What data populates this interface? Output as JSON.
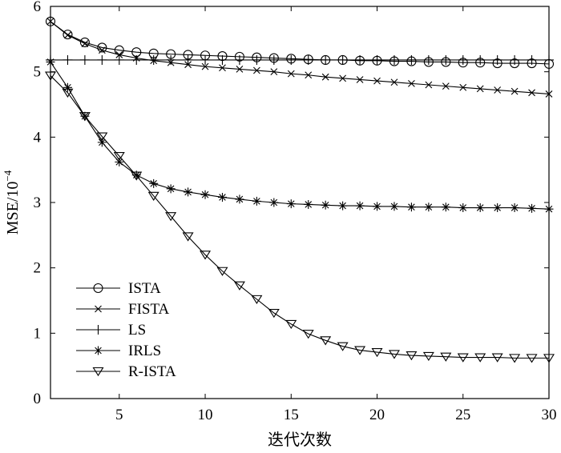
{
  "chart_data": {
    "type": "line",
    "title": "",
    "xlabel": "迭代次数",
    "ylabel": "MSE/10",
    "ylabel_exponent": "−4",
    "xlim": [
      1,
      30
    ],
    "ylim": [
      0,
      6
    ],
    "xticks": [
      5,
      10,
      15,
      20,
      25,
      30
    ],
    "yticks": [
      0,
      1,
      2,
      3,
      4,
      5,
      6
    ],
    "grid": false,
    "legend_position": "bottom-left",
    "line_color": "#000000",
    "series": [
      {
        "name": "ISTA",
        "marker": "circle",
        "x": [
          1,
          2,
          3,
          4,
          5,
          6,
          7,
          8,
          9,
          10,
          11,
          12,
          13,
          14,
          15,
          16,
          17,
          18,
          19,
          20,
          21,
          22,
          23,
          24,
          25,
          26,
          27,
          28,
          29,
          30
        ],
        "values": [
          5.77,
          5.57,
          5.45,
          5.37,
          5.33,
          5.3,
          5.28,
          5.27,
          5.26,
          5.25,
          5.24,
          5.23,
          5.22,
          5.21,
          5.2,
          5.19,
          5.18,
          5.18,
          5.17,
          5.17,
          5.16,
          5.16,
          5.15,
          5.15,
          5.14,
          5.14,
          5.13,
          5.13,
          5.13,
          5.12
        ]
      },
      {
        "name": "FISTA",
        "marker": "x",
        "x": [
          1,
          2,
          3,
          4,
          5,
          6,
          7,
          8,
          9,
          10,
          11,
          12,
          13,
          14,
          15,
          16,
          17,
          18,
          19,
          20,
          21,
          22,
          23,
          24,
          25,
          26,
          27,
          28,
          29,
          30
        ],
        "values": [
          5.77,
          5.56,
          5.43,
          5.33,
          5.26,
          5.21,
          5.17,
          5.14,
          5.11,
          5.08,
          5.06,
          5.04,
          5.02,
          5.0,
          4.97,
          4.95,
          4.92,
          4.9,
          4.88,
          4.86,
          4.84,
          4.82,
          4.8,
          4.78,
          4.76,
          4.74,
          4.72,
          4.7,
          4.68,
          4.66
        ]
      },
      {
        "name": "LS",
        "marker": "plus",
        "x": [
          1,
          2,
          3,
          4,
          5,
          6,
          7,
          8,
          9,
          10,
          11,
          12,
          13,
          14,
          15,
          16,
          17,
          18,
          19,
          20,
          21,
          22,
          23,
          24,
          25,
          26,
          27,
          28,
          29,
          30
        ],
        "values": [
          5.18,
          5.18,
          5.18,
          5.18,
          5.18,
          5.18,
          5.18,
          5.18,
          5.18,
          5.18,
          5.18,
          5.18,
          5.18,
          5.18,
          5.18,
          5.18,
          5.18,
          5.18,
          5.18,
          5.18,
          5.18,
          5.18,
          5.18,
          5.18,
          5.18,
          5.18,
          5.18,
          5.18,
          5.18,
          5.18
        ]
      },
      {
        "name": "IRLS",
        "marker": "asterisk",
        "x": [
          1,
          2,
          3,
          4,
          5,
          6,
          7,
          8,
          9,
          10,
          11,
          12,
          13,
          14,
          15,
          16,
          17,
          18,
          19,
          20,
          21,
          22,
          23,
          24,
          25,
          26,
          27,
          28,
          29,
          30
        ],
        "values": [
          5.15,
          4.76,
          4.32,
          3.92,
          3.62,
          3.42,
          3.29,
          3.21,
          3.16,
          3.12,
          3.08,
          3.05,
          3.02,
          3.0,
          2.98,
          2.97,
          2.96,
          2.95,
          2.95,
          2.94,
          2.94,
          2.93,
          2.93,
          2.93,
          2.92,
          2.92,
          2.92,
          2.92,
          2.91,
          2.9
        ]
      },
      {
        "name": "R-ISTA",
        "marker": "triangle-down",
        "x": [
          1,
          2,
          3,
          4,
          5,
          6,
          7,
          8,
          9,
          10,
          11,
          12,
          13,
          14,
          15,
          16,
          17,
          18,
          19,
          20,
          21,
          22,
          23,
          24,
          25,
          26,
          27,
          28,
          29,
          30
        ],
        "values": [
          4.94,
          4.68,
          4.32,
          4.01,
          3.71,
          3.41,
          3.1,
          2.79,
          2.48,
          2.2,
          1.95,
          1.73,
          1.52,
          1.31,
          1.14,
          0.99,
          0.89,
          0.8,
          0.74,
          0.71,
          0.68,
          0.66,
          0.65,
          0.64,
          0.63,
          0.63,
          0.63,
          0.62,
          0.62,
          0.62
        ]
      }
    ]
  }
}
